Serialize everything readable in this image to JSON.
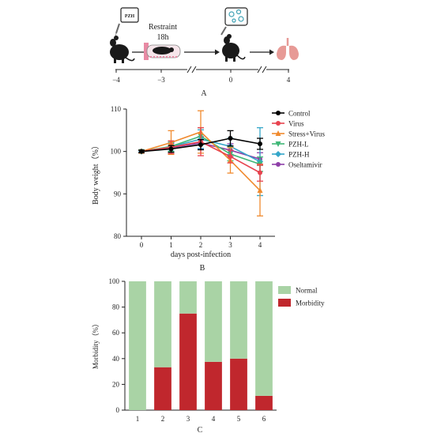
{
  "panel_a": {
    "label": "A",
    "pzh_label": "PZH",
    "restraint_line1": "Restraint",
    "restraint_line2": "18h",
    "timeline_ticks": [
      "−4",
      "−3",
      "0",
      "4"
    ],
    "colors": {
      "mouse": "#1a1a1a",
      "cage": "#e88aa4",
      "lung": "#e79a96",
      "syringe": "#6a6a6a",
      "virus": "#3fa2b5"
    }
  },
  "panel_b_label": "B",
  "panel_c_label": "C",
  "chart_data": [
    {
      "type": "line",
      "title": "",
      "xlabel": "days post-infection",
      "ylabel": "Body weight（%）",
      "x": [
        0,
        1,
        2,
        3,
        4
      ],
      "xticks": [
        "0",
        "1",
        "2",
        "3",
        "4"
      ],
      "ylim": [
        80,
        110
      ],
      "yticks": [
        "80",
        "90",
        "100",
        "110"
      ],
      "legend_position": "top-right",
      "series": [
        {
          "name": "Control",
          "color": "#000000",
          "marker": "circle",
          "values": [
            100,
            100.6,
            101.6,
            103.1,
            101.8
          ],
          "errors": [
            0.3,
            0.8,
            1.2,
            1.8,
            1.3
          ]
        },
        {
          "name": "Virus",
          "color": "#e8434f",
          "marker": "circle",
          "values": [
            100,
            101.0,
            102.3,
            98.8,
            95.0
          ],
          "errors": [
            0.3,
            1.5,
            3.3,
            1.5,
            2.0
          ]
        },
        {
          "name": "Stress+Virus",
          "color": "#f08a2e",
          "marker": "triangle",
          "values": [
            100,
            102.1,
            104.6,
            97.9,
            90.8
          ],
          "errors": [
            0.3,
            2.8,
            5.0,
            3.0,
            6.0
          ]
        },
        {
          "name": "PZH-L",
          "color": "#3fb776",
          "marker": "triangle-down",
          "values": [
            100,
            101.2,
            103.6,
            99.4,
            97.0
          ],
          "errors": [
            0.3,
            1.2,
            2.0,
            1.6,
            1.7
          ]
        },
        {
          "name": "PZH-H",
          "color": "#34a6c9",
          "marker": "diamond",
          "values": [
            100,
            101.1,
            102.9,
            101.2,
            97.6
          ],
          "errors": [
            0.3,
            1.0,
            2.2,
            1.9,
            8.0
          ]
        },
        {
          "name": "Oseltamivir",
          "color": "#8e3fa8",
          "marker": "circle",
          "values": [
            100,
            100.9,
            102.0,
            100.3,
            98.2
          ],
          "errors": [
            0.3,
            1.0,
            1.5,
            1.5,
            1.5
          ]
        }
      ]
    },
    {
      "type": "bar",
      "stacked": true,
      "title": "",
      "xlabel": "",
      "ylabel": "Morbidity（%）",
      "categories": [
        "1",
        "2",
        "3",
        "4",
        "5",
        "6"
      ],
      "ylim": [
        0,
        100
      ],
      "yticks": [
        "0",
        "20",
        "40",
        "60",
        "80",
        "100"
      ],
      "legend_position": "top-right",
      "series": [
        {
          "name": "Normal",
          "color": "#a9d3a5",
          "values": [
            100,
            66.7,
            25,
            62.5,
            60,
            88.9
          ]
        },
        {
          "name": "Morbidity",
          "color": "#c0272d",
          "values": [
            0,
            33.3,
            75,
            37.5,
            40,
            11.1
          ]
        }
      ]
    }
  ]
}
